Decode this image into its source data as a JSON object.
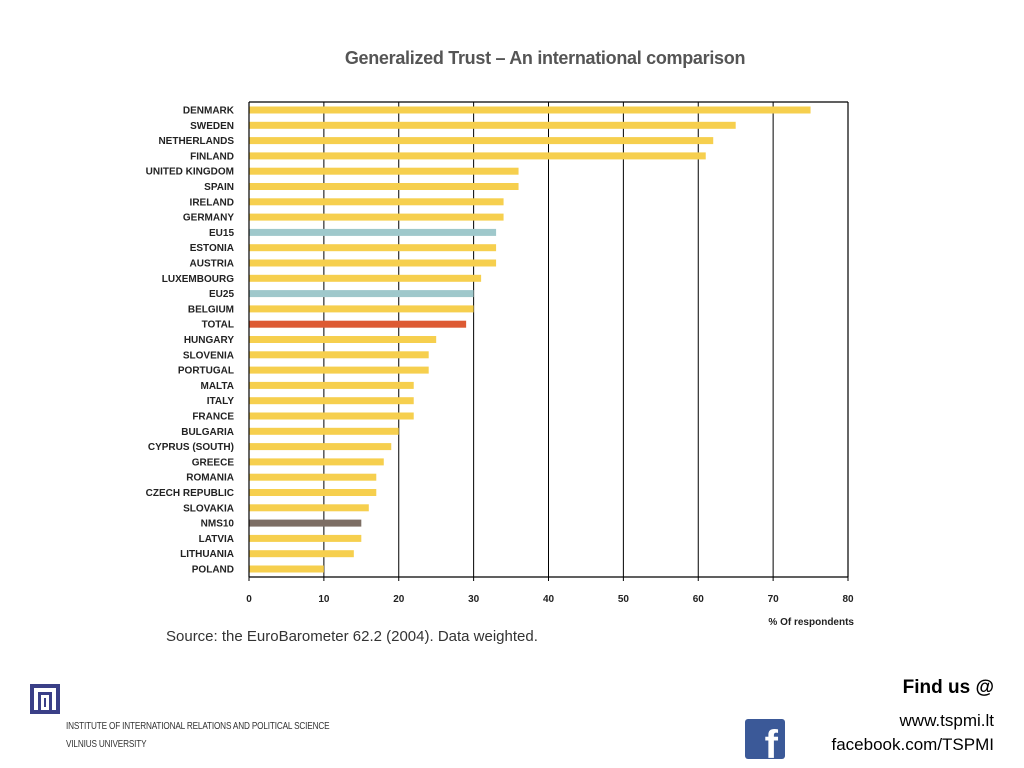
{
  "chart_data": {
    "type": "bar",
    "orientation": "horizontal",
    "title": "Generalized Trust – An international comparison",
    "xlabel": "% Of respondents",
    "xlim": [
      0,
      80
    ],
    "xticks": [
      0,
      10,
      20,
      30,
      40,
      50,
      60,
      70,
      80
    ],
    "grid": true,
    "categories": [
      "DENMARK",
      "SWEDEN",
      "NETHERLANDS",
      "FINLAND",
      "UNITED KINGDOM",
      "SPAIN",
      "IRELAND",
      "GERMANY",
      "EU15",
      "ESTONIA",
      "AUSTRIA",
      "LUXEMBOURG",
      "EU25",
      "BELGIUM",
      "TOTAL",
      "HUNGARY",
      "SLOVENIA",
      "PORTUGAL",
      "MALTA",
      "ITALY",
      "FRANCE",
      "BULGARIA",
      "CYPRUS (SOUTH)",
      "GREECE",
      "ROMANIA",
      "CZECH REPUBLIC",
      "SLOVAKIA",
      "NMS10",
      "LATVIA",
      "LITHUANIA",
      "POLAND"
    ],
    "values": [
      75,
      65,
      62,
      61,
      36,
      36,
      34,
      34,
      33,
      33,
      33,
      31,
      30,
      30,
      29,
      25,
      24,
      24,
      22,
      22,
      22,
      20,
      19,
      18,
      17,
      17,
      16,
      15,
      15,
      14,
      10
    ],
    "colors": {
      "country": "#f6cf4e",
      "EU15": "#9fc8cb",
      "EU25": "#9fc8cb",
      "TOTAL": "#dd5a33",
      "NMS10": "#7d6e64"
    }
  },
  "source": "Source: the EuroBarometer 62.2 (2004). Data weighted.",
  "footer": {
    "institution_line1": "Institute of International Relations and Political Science",
    "institution_line2": "Vilnius University",
    "find_us": "Find us @",
    "website": "www.tspmi.lt",
    "facebook": "facebook.com/TSPMI",
    "logo_icon": "tspmi-logo-icon",
    "facebook_icon": "facebook-icon"
  }
}
